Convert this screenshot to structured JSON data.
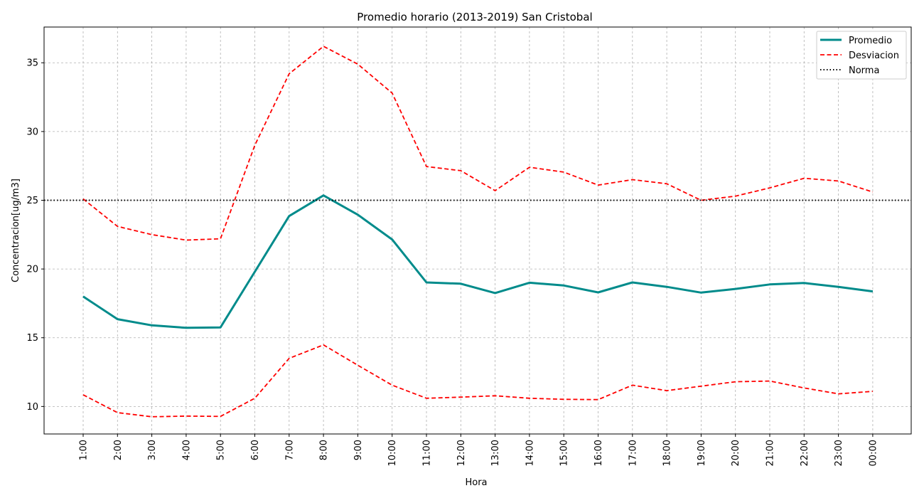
{
  "chart_data": {
    "type": "line",
    "title": "Promedio horario (2013-2019) San Cristobal",
    "xlabel": "Hora",
    "ylabel": "Concentracion[ug/m3]",
    "categories": [
      "1:00",
      "2:00",
      "3:00",
      "4:00",
      "5:00",
      "6:00",
      "7:00",
      "8:00",
      "9:00",
      "10:00",
      "11:00",
      "12:00",
      "13:00",
      "14:00",
      "15:00",
      "16:00",
      "17:00",
      "18:00",
      "19:00",
      "20:00",
      "21:00",
      "22:00",
      "23:00",
      "00:00"
    ],
    "ylim": [
      8,
      37.6
    ],
    "yticks": [
      10,
      15,
      20,
      25,
      30,
      35
    ],
    "grid": true,
    "legend_position": "top-right",
    "series": [
      {
        "name": "Promedio",
        "style": "solid",
        "color": "#008b8b",
        "values": [
          18.0,
          16.35,
          15.9,
          15.72,
          15.75,
          19.8,
          23.85,
          25.35,
          23.95,
          22.15,
          19.02,
          18.93,
          18.25,
          19.0,
          18.8,
          18.3,
          19.02,
          18.7,
          18.28,
          18.55,
          18.88,
          18.98,
          18.7,
          18.37
        ]
      },
      {
        "name": "Desviacion",
        "style": "dashed",
        "color": "#ff0000",
        "values": [
          25.1,
          23.1,
          22.5,
          22.1,
          22.2,
          29.0,
          34.2,
          36.2,
          34.9,
          32.8,
          27.45,
          27.15,
          25.7,
          27.4,
          27.05,
          26.1,
          26.5,
          26.2,
          25.0,
          25.3,
          25.9,
          26.6,
          26.4,
          25.6
        ]
      },
      {
        "name": "Desviacion lower",
        "legend": false,
        "style": "dashed",
        "color": "#ff0000",
        "values": [
          10.85,
          9.55,
          9.25,
          9.3,
          9.28,
          10.6,
          13.5,
          14.48,
          13.0,
          11.55,
          10.6,
          10.68,
          10.78,
          10.6,
          10.52,
          10.5,
          11.55,
          11.15,
          11.48,
          11.8,
          11.85,
          11.35,
          10.92,
          11.1
        ]
      },
      {
        "name": "Norma",
        "style": "dotted",
        "color": "#000000",
        "values": [
          25,
          25,
          25,
          25,
          25,
          25,
          25,
          25,
          25,
          25,
          25,
          25,
          25,
          25,
          25,
          25,
          25,
          25,
          25,
          25,
          25,
          25,
          25,
          25
        ]
      }
    ]
  }
}
